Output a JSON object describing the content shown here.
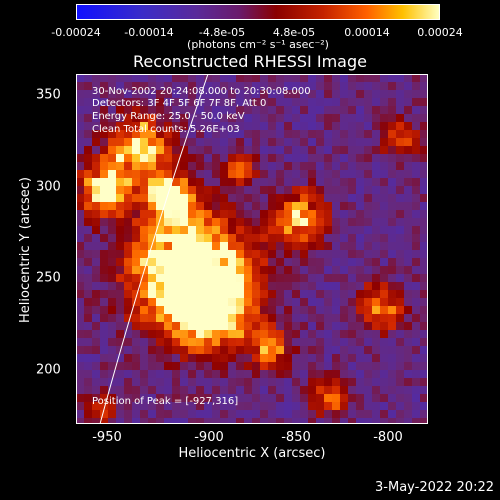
{
  "colorbar": {
    "ticks": [
      "-0.00024",
      "-0.00014",
      "-4.8e-05",
      "4.8e-05",
      "0.00014",
      "0.00024"
    ],
    "units": "(photons cm⁻² s⁻¹ asec⁻²)"
  },
  "title": "Reconstructed RHESSI Image",
  "annotations": {
    "time": "30-Nov-2002 20:24:08.000 to 20:30:08.000",
    "detectors": "Detectors: 3F 4F 5F 6F 7F 8F, Att 0",
    "energy": "Energy Range: 25.0 - 50.0 keV",
    "clean": "Clean    Total counts: 5.26E+03",
    "peak": "Position of Peak = [-927,316]"
  },
  "axes": {
    "xlabel": "Heliocentric X (arcsec)",
    "ylabel": "Heliocentric Y (arcsec)",
    "xticks": [
      "-950",
      "-900",
      "-850",
      "-800"
    ],
    "yticks": [
      "350",
      "300",
      "250",
      "200"
    ]
  },
  "timestamp": "3-May-2022 20:22"
}
